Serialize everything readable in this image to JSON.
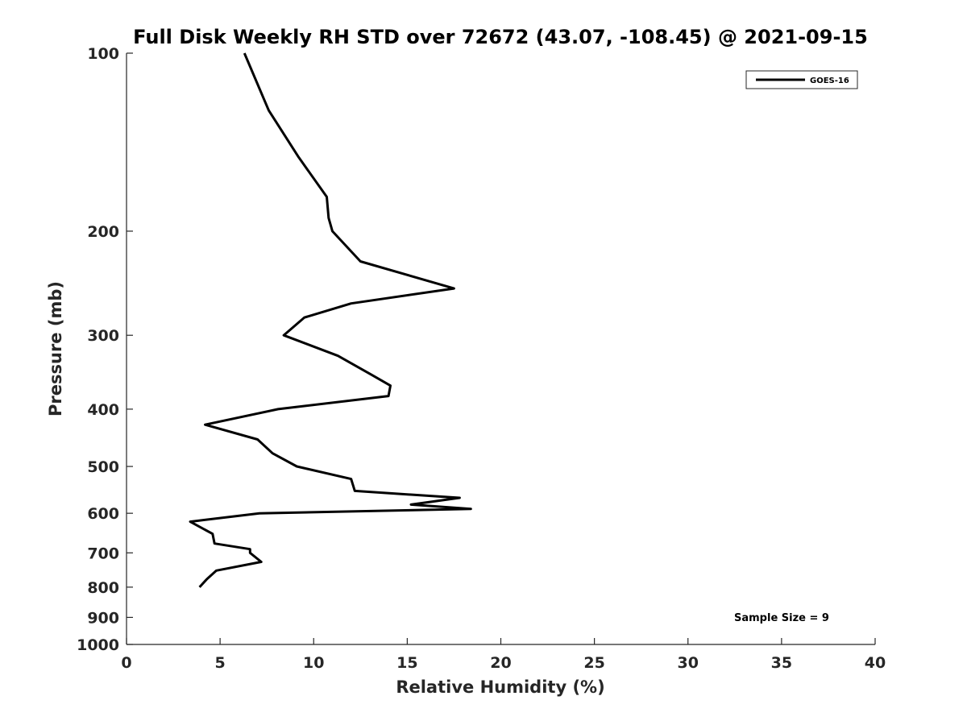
{
  "chart_data": {
    "type": "line",
    "title": "Full Disk Weekly RH STD over 72672 (43.07, -108.45) @ 2021-09-15",
    "xlabel": "Relative Humidity (%)",
    "ylabel": "Pressure (mb)",
    "xlim": [
      0,
      40
    ],
    "ylim": [
      100,
      1000
    ],
    "y_scale": "log",
    "y_reversed": true,
    "x_ticks": [
      0,
      5,
      10,
      15,
      20,
      25,
      30,
      35,
      40
    ],
    "y_ticks": [
      100,
      200,
      300,
      400,
      500,
      600,
      700,
      800,
      900,
      1000
    ],
    "grid": false,
    "legend_position": "top-right",
    "annotation": "Sample Size = 9",
    "series": [
      {
        "name": "GOES-16",
        "color": "#000000",
        "points": [
          [
            6.3,
            100
          ],
          [
            7.6,
            125
          ],
          [
            9.2,
            150
          ],
          [
            10.7,
            175
          ],
          [
            10.8,
            190
          ],
          [
            11.0,
            200
          ],
          [
            12.5,
            225
          ],
          [
            17.5,
            250
          ],
          [
            12.0,
            265
          ],
          [
            9.5,
            280
          ],
          [
            8.4,
            300
          ],
          [
            11.3,
            325
          ],
          [
            13.1,
            350
          ],
          [
            14.1,
            365
          ],
          [
            14.0,
            380
          ],
          [
            8.1,
            400
          ],
          [
            4.2,
            425
          ],
          [
            7.0,
            450
          ],
          [
            7.8,
            475
          ],
          [
            9.1,
            500
          ],
          [
            12.0,
            525
          ],
          [
            12.2,
            550
          ],
          [
            17.8,
            565
          ],
          [
            15.2,
            580
          ],
          [
            18.4,
            590
          ],
          [
            7.1,
            600
          ],
          [
            3.4,
            620
          ],
          [
            4.6,
            650
          ],
          [
            4.7,
            675
          ],
          [
            6.6,
            690
          ],
          [
            6.6,
            700
          ],
          [
            7.2,
            725
          ],
          [
            4.8,
            750
          ],
          [
            4.3,
            775
          ],
          [
            3.9,
            800
          ]
        ]
      }
    ]
  }
}
